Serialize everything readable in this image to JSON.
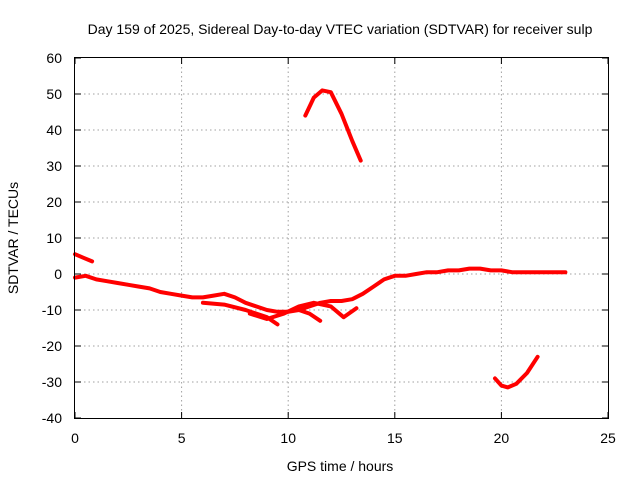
{
  "chart_data": {
    "type": "line",
    "title": "Day 159 of 2025, Sidereal Day-to-day VTEC variation (SDTVAR) for receiver sulp",
    "xlabel": "GPS time / hours",
    "ylabel": "SDTVAR / TECUs",
    "xlim": [
      0,
      25
    ],
    "ylim": [
      -40,
      60
    ],
    "xticks": [
      0,
      5,
      10,
      15,
      20,
      25
    ],
    "yticks": [
      -40,
      -30,
      -20,
      -10,
      0,
      10,
      20,
      30,
      40,
      50,
      60
    ],
    "grid": true,
    "color": "#ff0000",
    "series": [
      {
        "name": "main-trace",
        "x": [
          0,
          0.5,
          1,
          1.5,
          2,
          2.5,
          3,
          3.5,
          4,
          4.5,
          5,
          5.5,
          6,
          6.5,
          7,
          7.5,
          8,
          8.5,
          9,
          9.5,
          10,
          10.5,
          11,
          11.5,
          12,
          12.5,
          13,
          13.5,
          14,
          14.5,
          15,
          15.5,
          16,
          16.5,
          17,
          17.5,
          18,
          18.5,
          19,
          19.5,
          20,
          20.5,
          21,
          21.5,
          22,
          22.5,
          23
        ],
        "y": [
          -1,
          -0.5,
          -1.5,
          -2,
          -2.5,
          -3,
          -3.5,
          -4,
          -5,
          -5.5,
          -6,
          -6.5,
          -6.5,
          -6,
          -5.5,
          -6.5,
          -8,
          -9,
          -10,
          -10.5,
          -10.5,
          -10,
          -9,
          -8,
          -7.5,
          -7.5,
          -7,
          -5.5,
          -3.5,
          -1.5,
          -0.5,
          -0.5,
          0,
          0.5,
          0.5,
          1,
          1,
          1.5,
          1.5,
          1,
          1,
          0.5,
          0.5,
          0.5,
          0.5,
          0.5,
          0.5
        ]
      },
      {
        "name": "lower-branch-a",
        "x": [
          6,
          7,
          8,
          9,
          9.5
        ],
        "y": [
          -8,
          -8.5,
          -10,
          -12,
          -14
        ]
      },
      {
        "name": "lower-branch-b",
        "x": [
          8.2,
          9,
          9.8,
          10.5,
          11.2,
          12,
          12.6,
          13.2
        ],
        "y": [
          -11,
          -12.5,
          -11,
          -9,
          -8,
          -9,
          -12,
          -9.5
        ]
      },
      {
        "name": "lower-branch-c",
        "x": [
          10.5,
          11,
          11.5
        ],
        "y": [
          -10,
          -11,
          -13
        ]
      },
      {
        "name": "early-offset",
        "x": [
          0,
          0.4,
          0.8
        ],
        "y": [
          5.5,
          4.5,
          3.5
        ]
      },
      {
        "name": "midday-arc",
        "x": [
          10.8,
          11.2,
          11.6,
          12,
          12.5,
          13,
          13.4
        ],
        "y": [
          44,
          49,
          51,
          50.5,
          44.5,
          37,
          31.5
        ]
      },
      {
        "name": "evening-dip",
        "x": [
          19.7,
          20,
          20.3,
          20.7,
          21.2,
          21.7
        ],
        "y": [
          -29,
          -31,
          -31.5,
          -30.5,
          -27.5,
          -23
        ]
      }
    ]
  }
}
